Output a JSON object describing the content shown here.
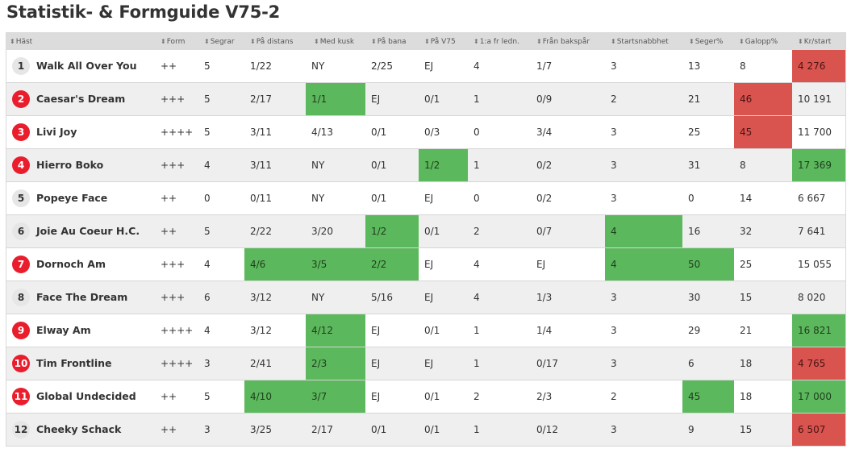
{
  "title": "Statistik- & Formguide V75-2",
  "columns": [
    "Häst",
    "Form",
    "Segrar",
    "På distans",
    "Med kusk",
    "På bana",
    "På V75",
    "1:a fr ledn.",
    "Från bakspår",
    "Startsnabbhet",
    "Seger%",
    "Galopp%",
    "Kr/start"
  ],
  "colors": {
    "good": "#5cb85c",
    "bad": "#d9534f",
    "number_badge_red": "#ea1d2c",
    "number_badge_grey": "#e6e6e6"
  },
  "rows": [
    {
      "nr": "1",
      "badge": "grey",
      "horse": "Walk All Over You",
      "cells": [
        "++",
        "5",
        "1/22",
        "NY",
        "2/25",
        "EJ",
        "4",
        "1/7",
        "3",
        "13",
        "8",
        "4 276"
      ],
      "hl": {
        "11": "bad"
      }
    },
    {
      "nr": "2",
      "badge": "red",
      "horse": "Caesar's Dream",
      "cells": [
        "+++",
        "5",
        "2/17",
        "1/1",
        "EJ",
        "0/1",
        "1",
        "0/9",
        "2",
        "21",
        "46",
        "10 191"
      ],
      "hl": {
        "3": "good",
        "10": "bad"
      }
    },
    {
      "nr": "3",
      "badge": "red",
      "horse": "Livi Joy",
      "cells": [
        "++++",
        "5",
        "3/11",
        "4/13",
        "0/1",
        "0/3",
        "0",
        "3/4",
        "3",
        "25",
        "45",
        "11 700"
      ],
      "hl": {
        "10": "bad"
      }
    },
    {
      "nr": "4",
      "badge": "red",
      "horse": "Hierro Boko",
      "cells": [
        "+++",
        "4",
        "3/11",
        "NY",
        "0/1",
        "1/2",
        "1",
        "0/2",
        "3",
        "31",
        "8",
        "17 369"
      ],
      "hl": {
        "5": "good",
        "11": "good"
      }
    },
    {
      "nr": "5",
      "badge": "grey",
      "horse": "Popeye Face",
      "cells": [
        "++",
        "0",
        "0/11",
        "NY",
        "0/1",
        "EJ",
        "0",
        "0/2",
        "3",
        "0",
        "14",
        "6 667"
      ],
      "hl": {}
    },
    {
      "nr": "6",
      "badge": "grey",
      "horse": "Joie Au Coeur H.C.",
      "cells": [
        "++",
        "5",
        "2/22",
        "3/20",
        "1/2",
        "0/1",
        "2",
        "0/7",
        "4",
        "16",
        "32",
        "7 641"
      ],
      "hl": {
        "4": "good",
        "8": "good"
      }
    },
    {
      "nr": "7",
      "badge": "red",
      "horse": "Dornoch Am",
      "cells": [
        "+++",
        "4",
        "4/6",
        "3/5",
        "2/2",
        "EJ",
        "4",
        "EJ",
        "4",
        "50",
        "25",
        "15 055"
      ],
      "hl": {
        "2": "good",
        "3": "good",
        "4": "good",
        "8": "good",
        "9": "good"
      }
    },
    {
      "nr": "8",
      "badge": "grey",
      "horse": "Face The Dream",
      "cells": [
        "+++",
        "6",
        "3/12",
        "NY",
        "5/16",
        "EJ",
        "4",
        "1/3",
        "3",
        "30",
        "15",
        "8 020"
      ],
      "hl": {}
    },
    {
      "nr": "9",
      "badge": "red",
      "horse": "Elway Am",
      "cells": [
        "++++",
        "4",
        "3/12",
        "4/12",
        "EJ",
        "0/1",
        "1",
        "1/4",
        "3",
        "29",
        "21",
        "16 821"
      ],
      "hl": {
        "3": "good",
        "11": "good"
      }
    },
    {
      "nr": "10",
      "badge": "red",
      "horse": "Tim Frontline",
      "cells": [
        "++++",
        "3",
        "2/41",
        "2/3",
        "EJ",
        "EJ",
        "1",
        "0/17",
        "3",
        "6",
        "18",
        "4 765"
      ],
      "hl": {
        "3": "good",
        "11": "bad"
      }
    },
    {
      "nr": "11",
      "badge": "red",
      "horse": "Global Undecided",
      "cells": [
        "++",
        "5",
        "4/10",
        "3/7",
        "EJ",
        "0/1",
        "2",
        "2/3",
        "2",
        "45",
        "18",
        "17 000"
      ],
      "hl": {
        "2": "good",
        "3": "good",
        "9": "good",
        "11": "good"
      }
    },
    {
      "nr": "12",
      "badge": "grey",
      "horse": "Cheeky Schack",
      "cells": [
        "++",
        "3",
        "3/25",
        "2/17",
        "0/1",
        "0/1",
        "1",
        "0/12",
        "3",
        "9",
        "15",
        "6 507"
      ],
      "hl": {
        "11": "bad"
      }
    }
  ]
}
